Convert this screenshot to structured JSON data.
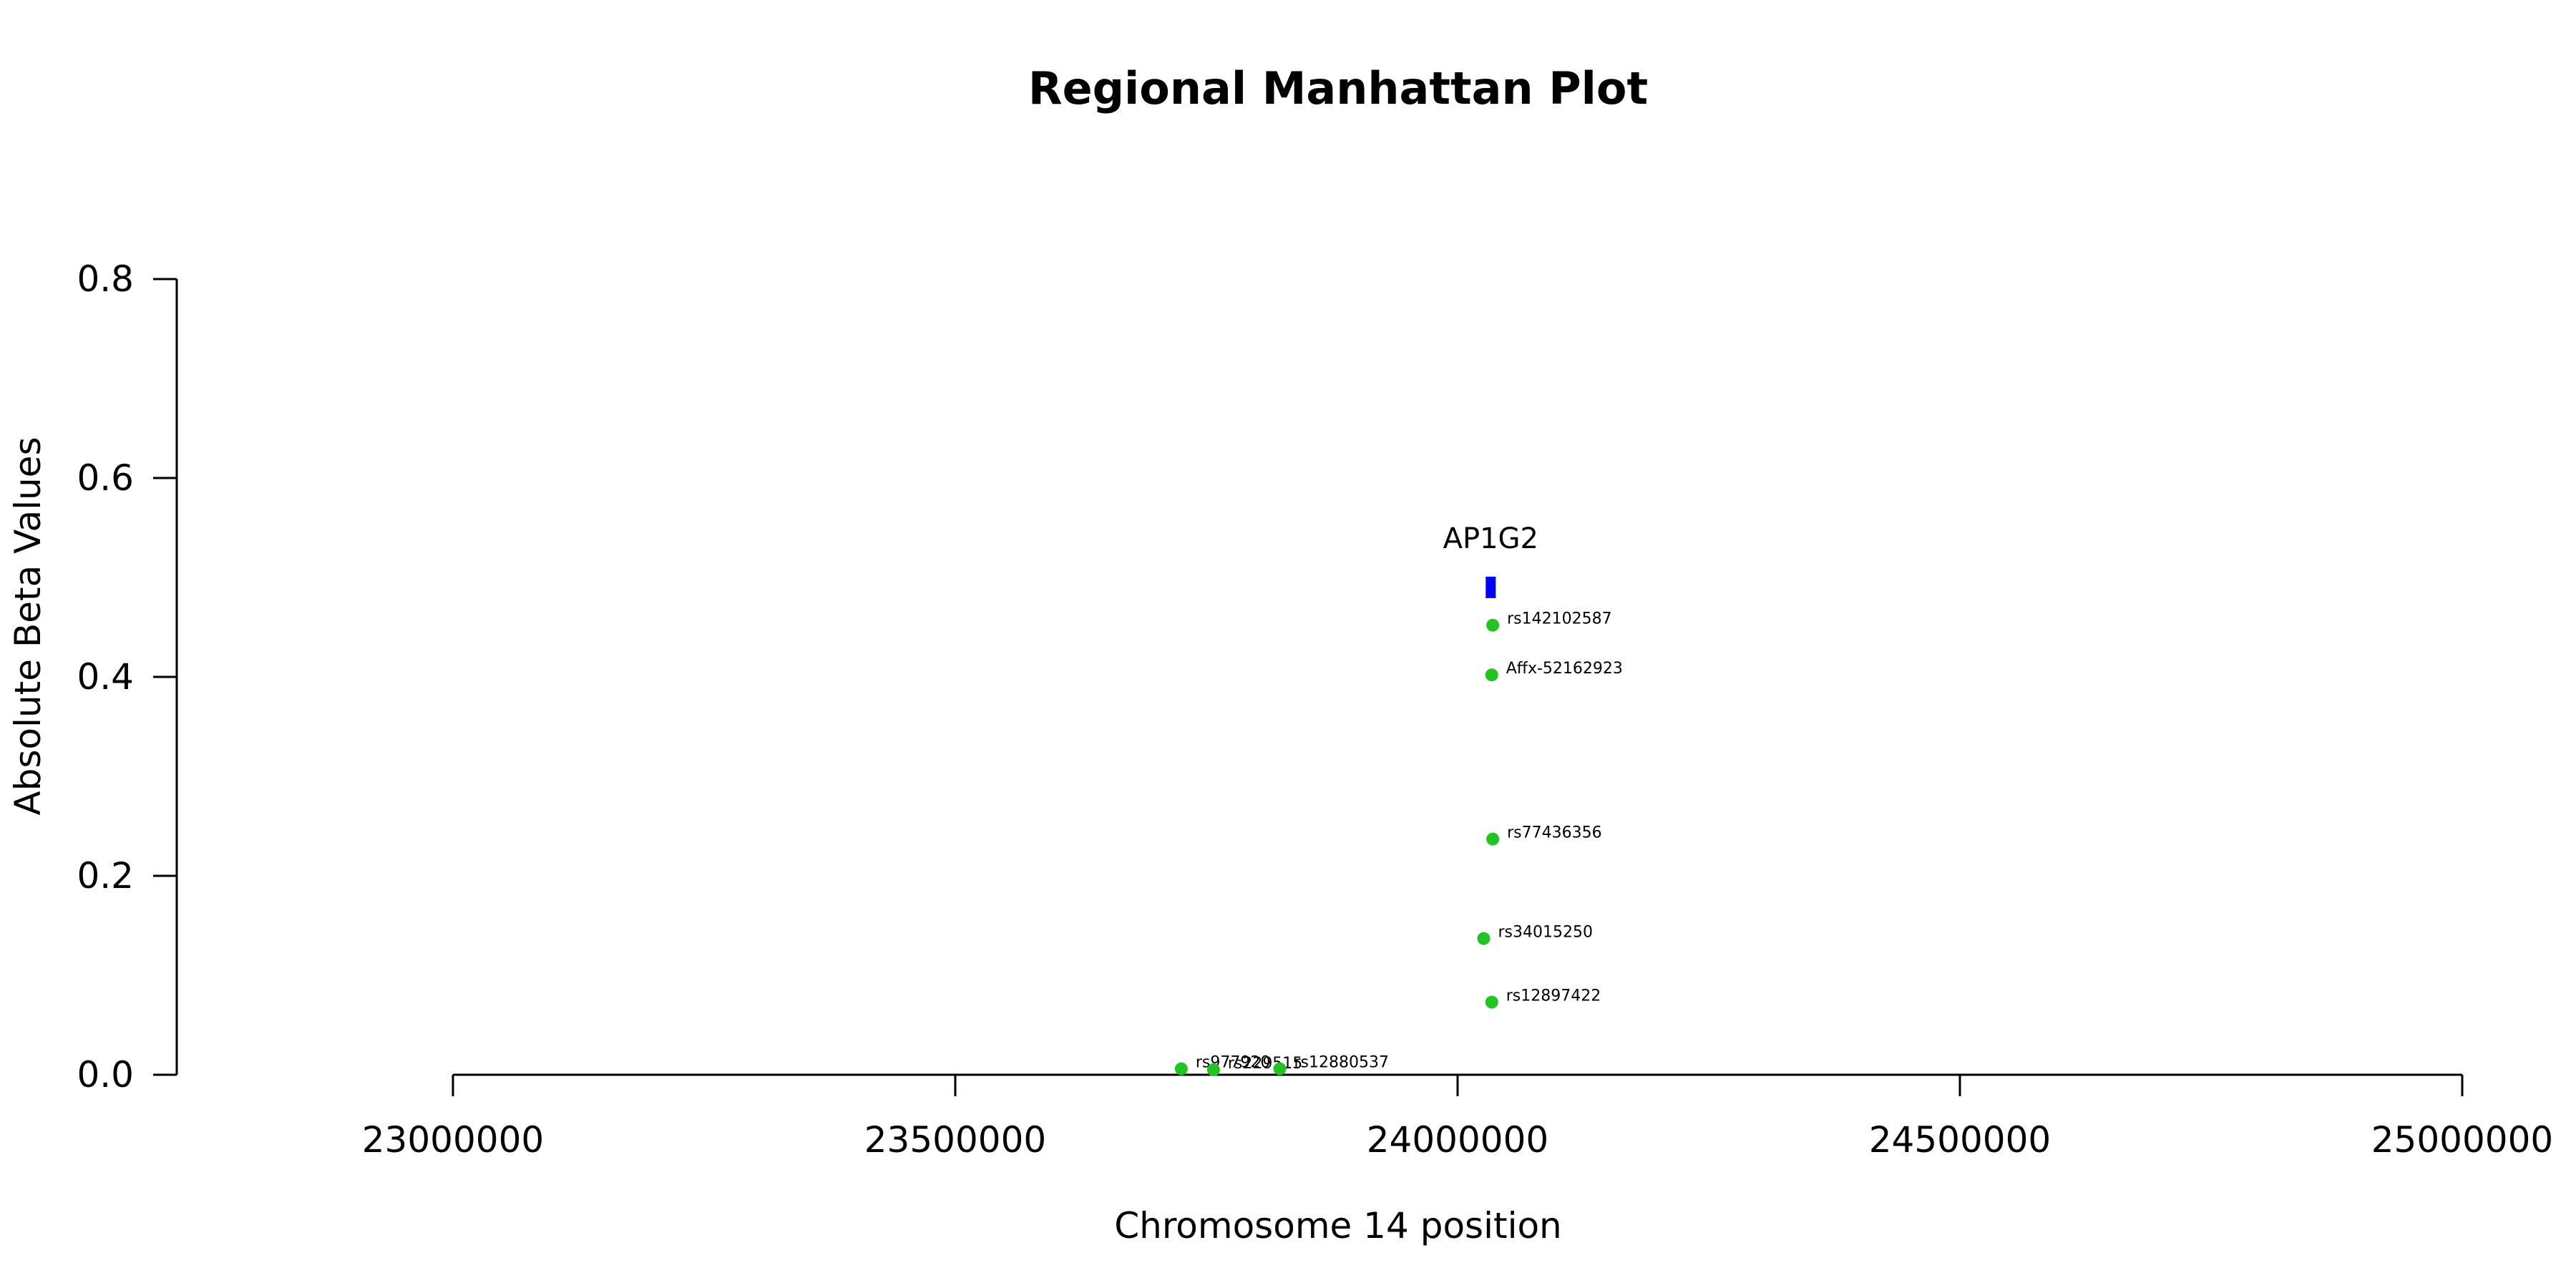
{
  "chart_data": {
    "type": "scatter",
    "title": "Regional Manhattan Plot",
    "xlabel": "Chromosome 14 position",
    "ylabel": "Absolute Beta Values",
    "xlim": [
      23000000,
      25000000
    ],
    "ylim": [
      0,
      0.8
    ],
    "x_ticks": [
      "23000000",
      "23500000",
      "24000000",
      "24500000",
      "25000000"
    ],
    "y_ticks": [
      "0.0",
      "0.2",
      "0.4",
      "0.6",
      "0.8"
    ],
    "grid": false,
    "point_color": "#22c422",
    "gene_color": "#0000ff",
    "points": [
      {
        "label": "rs142102587",
        "x": 24035000,
        "y": 0.452
      },
      {
        "label": "Affx-52162923",
        "x": 24034000,
        "y": 0.402
      },
      {
        "label": "rs77436356",
        "x": 24035000,
        "y": 0.237
      },
      {
        "label": "rs34015250",
        "x": 24026000,
        "y": 0.137
      },
      {
        "label": "rs12897422",
        "x": 24034000,
        "y": 0.073
      },
      {
        "label": "rs977920",
        "x": 23725000,
        "y": 0.006
      },
      {
        "label": "rs229515",
        "x": 23757000,
        "y": 0.005
      },
      {
        "label": "rs12880537",
        "x": 23823000,
        "y": 0.006
      }
    ],
    "genes": [
      {
        "name": "AP1G2",
        "start": 24028000,
        "end": 24038000,
        "y": 0.49
      }
    ]
  }
}
